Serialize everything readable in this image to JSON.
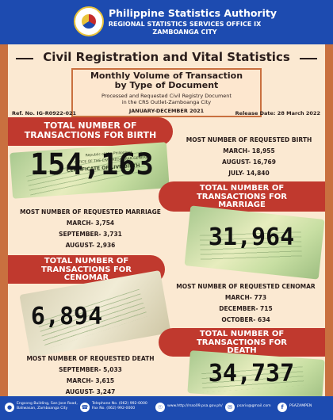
{
  "header": {
    "agency": "Philippine Statistics Authority",
    "office": "REGIONAL STATISTICS SERVICES OFFICE IX",
    "city": "ZAMBOANGA CITY"
  },
  "title": "Civil Registration and Vital Statistics",
  "subtitle": {
    "line1": "Monthly Volume of Transaction",
    "line2": "by Type of Document",
    "desc1": "Processed and Requested Civil Registry Document",
    "desc2": "in the CRS Outlet-Zamboanga City",
    "period": "JANUARY-DECEMBER 2021"
  },
  "ref": "Ref. No. IG-R0922-021",
  "release": "Release Date: 28 March 2022",
  "birth": {
    "label1": "TOTAL NUMBER OF",
    "label2": "TRANSACTIONS FOR BIRTH",
    "total": "154,163",
    "top_heading": "MOST NUMBER OF REQUESTED BIRTH",
    "top": [
      "MARCH- 18,955",
      "AUGUST- 16,769",
      "JULY- 14,840"
    ],
    "doc1": "Republic of the Philippines",
    "doc2": "OFFICE OF THE CIVIL REGISTRAR GENERAL",
    "doc3": "CERTIFICATE OF LIVE BIRTH"
  },
  "marriage": {
    "label1": "TOTAL NUMBER OF",
    "label2": "TRANSACTIONS FOR",
    "label3": "MARRIAGE",
    "total": "31,964",
    "top_heading": "MOST NUMBER OF REQUESTED MARRIAGE",
    "top": [
      "MARCH- 3,754",
      "SEPTEMBER- 3,731",
      "AUGUST- 2,936"
    ]
  },
  "cenomar": {
    "label1": "TOTAL NUMBER OF",
    "label2": "TRANSACTIONS FOR",
    "label3": "CENOMAR",
    "total": "6,894",
    "top_heading": "MOST NUMBER OF REQUESTED CENOMAR",
    "top": [
      "MARCH- 773",
      "DECEMBER- 715",
      "OCTOBER- 634"
    ]
  },
  "death": {
    "label1": "TOTAL NUMBER OF",
    "label2": "TRANSACTIONS FOR",
    "label3": "DEATH",
    "total": "34,737",
    "top_heading": "MOST NUMBER OF REQUESTED DEATH",
    "top": [
      "SEPTEMBER- 5,033",
      "MARCH- 3,615",
      "AUGUST- 3,247"
    ]
  },
  "footer": {
    "address1": "Engcong Building, San Jose Road,",
    "address2": "Baliwasan, Zamboanga City",
    "phone1": "Telephone No. (062) 992-0000",
    "phone2": "Fax No. (062) 992-0000",
    "web": "www.http://rsso09.psa.gov.ph/",
    "email": "psarix@gmail.com",
    "fb": "PSAZAMPEN"
  },
  "colors": {
    "header_blue": "#1d4bb0",
    "banner_red": "#c0392e",
    "accent_orange": "#c9703f",
    "panel_cream": "#fbe9d2"
  }
}
